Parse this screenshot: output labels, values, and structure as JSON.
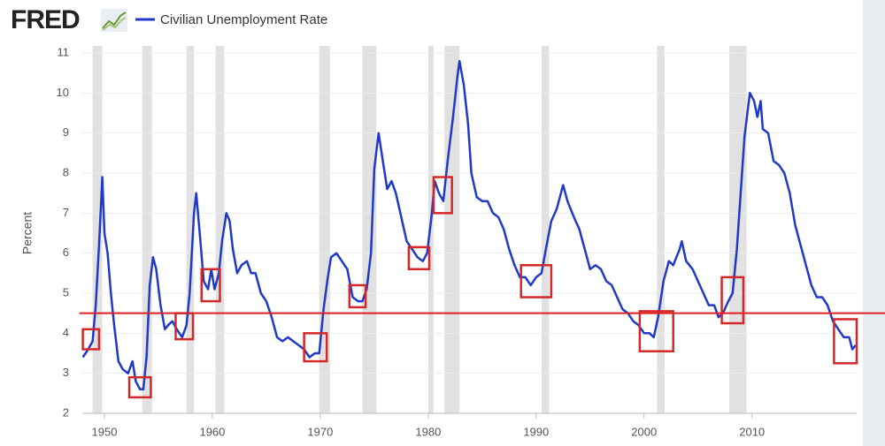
{
  "logo": "FRED",
  "chart_data": {
    "type": "line",
    "ylabel": "Percent",
    "grid": true,
    "xlim": [
      1948,
      2019.7
    ],
    "xticks": [
      1950,
      1960,
      1970,
      1980,
      1990,
      2000,
      2010
    ],
    "ylim": [
      2,
      11
    ],
    "yticks": [
      2,
      3,
      4,
      5,
      6,
      7,
      8,
      9,
      10,
      11
    ],
    "series": [
      {
        "name": "Civilian Unemployment Rate",
        "color": "#1f39c9",
        "x": [
          1948.0,
          1948.5,
          1948.9,
          1949.2,
          1949.5,
          1949.8,
          1950.0,
          1950.3,
          1950.6,
          1950.9,
          1951.3,
          1951.7,
          1952.2,
          1952.6,
          1952.9,
          1953.3,
          1953.6,
          1953.9,
          1954.2,
          1954.5,
          1954.8,
          1955.2,
          1955.6,
          1955.9,
          1956.3,
          1956.7,
          1957.2,
          1957.6,
          1957.9,
          1958.3,
          1958.5,
          1958.8,
          1959.2,
          1959.6,
          1959.9,
          1960.2,
          1960.6,
          1960.9,
          1961.3,
          1961.6,
          1961.9,
          1962.3,
          1962.7,
          1963.2,
          1963.6,
          1964.0,
          1964.5,
          1965.0,
          1965.5,
          1966.0,
          1966.5,
          1967.0,
          1967.5,
          1968.0,
          1968.5,
          1969.0,
          1969.5,
          1969.9,
          1970.3,
          1970.7,
          1971.0,
          1971.5,
          1972.0,
          1972.5,
          1973.0,
          1973.5,
          1973.9,
          1974.3,
          1974.7,
          1975.0,
          1975.4,
          1975.8,
          1976.2,
          1976.6,
          1977.0,
          1977.5,
          1978.0,
          1978.5,
          1979.0,
          1979.5,
          1979.9,
          1980.3,
          1980.6,
          1981.0,
          1981.4,
          1981.8,
          1982.3,
          1982.7,
          1982.9,
          1983.3,
          1983.7,
          1984.0,
          1984.5,
          1985.0,
          1985.5,
          1986.0,
          1986.5,
          1987.0,
          1987.5,
          1988.0,
          1988.5,
          1989.0,
          1989.5,
          1990.0,
          1990.5,
          1990.9,
          1991.4,
          1991.9,
          1992.5,
          1992.9,
          1993.5,
          1994.0,
          1994.5,
          1995.0,
          1995.5,
          1996.0,
          1996.5,
          1997.0,
          1997.5,
          1998.0,
          1998.5,
          1999.0,
          1999.5,
          2000.0,
          2000.5,
          2000.9,
          2001.3,
          2001.8,
          2002.3,
          2002.7,
          2003.3,
          2003.5,
          2003.9,
          2004.5,
          2005.0,
          2005.5,
          2006.0,
          2006.5,
          2006.9,
          2007.3,
          2007.8,
          2008.2,
          2008.6,
          2008.9,
          2009.3,
          2009.8,
          2010.2,
          2010.5,
          2010.8,
          2011.0,
          2011.5,
          2012.0,
          2012.5,
          2013.0,
          2013.5,
          2014.0,
          2014.5,
          2015.0,
          2015.5,
          2016.0,
          2016.5,
          2017.0,
          2017.5,
          2018.0,
          2018.5,
          2019.0,
          2019.3,
          2019.6
        ],
        "values": [
          3.4,
          3.6,
          3.8,
          4.7,
          6.2,
          7.9,
          6.5,
          6.0,
          5.0,
          4.2,
          3.3,
          3.1,
          3.0,
          3.3,
          2.8,
          2.6,
          2.6,
          3.4,
          5.2,
          5.9,
          5.6,
          4.7,
          4.1,
          4.2,
          4.3,
          4.1,
          3.9,
          4.2,
          5.0,
          7.0,
          7.5,
          6.6,
          5.3,
          5.1,
          5.6,
          5.1,
          5.5,
          6.3,
          7.0,
          6.8,
          6.1,
          5.5,
          5.7,
          5.8,
          5.5,
          5.5,
          5.0,
          4.8,
          4.4,
          3.9,
          3.8,
          3.9,
          3.8,
          3.7,
          3.6,
          3.4,
          3.5,
          3.5,
          4.6,
          5.4,
          5.9,
          6.0,
          5.8,
          5.6,
          4.9,
          4.8,
          4.8,
          5.1,
          6.0,
          8.1,
          9.0,
          8.3,
          7.6,
          7.8,
          7.5,
          6.9,
          6.3,
          6.1,
          5.9,
          5.8,
          6.0,
          6.9,
          7.8,
          7.5,
          7.3,
          8.3,
          9.4,
          10.4,
          10.8,
          10.2,
          9.2,
          8.0,
          7.4,
          7.3,
          7.3,
          7.0,
          6.9,
          6.6,
          6.1,
          5.7,
          5.4,
          5.4,
          5.2,
          5.4,
          5.5,
          6.1,
          6.8,
          7.1,
          7.7,
          7.3,
          6.9,
          6.6,
          6.1,
          5.6,
          5.7,
          5.6,
          5.3,
          5.2,
          4.9,
          4.6,
          4.5,
          4.3,
          4.2,
          4.0,
          4.0,
          3.9,
          4.4,
          5.3,
          5.8,
          5.7,
          6.1,
          6.3,
          5.8,
          5.6,
          5.3,
          5.0,
          4.7,
          4.7,
          4.4,
          4.5,
          4.8,
          5.0,
          6.1,
          7.3,
          8.9,
          10.0,
          9.8,
          9.4,
          9.8,
          9.1,
          9.0,
          8.3,
          8.2,
          8.0,
          7.5,
          6.7,
          6.2,
          5.7,
          5.2,
          4.9,
          4.9,
          4.7,
          4.3,
          4.1,
          3.9,
          3.9,
          3.6,
          3.7
        ]
      }
    ],
    "recessions": [
      [
        1948.9,
        1949.8
      ],
      [
        1953.5,
        1954.4
      ],
      [
        1957.6,
        1958.3
      ],
      [
        1960.3,
        1961.1
      ],
      [
        1969.9,
        1970.9
      ],
      [
        1973.9,
        1975.2
      ],
      [
        1980.0,
        1980.5
      ],
      [
        1981.5,
        1982.9
      ],
      [
        1990.5,
        1991.2
      ],
      [
        2001.2,
        2001.9
      ],
      [
        2007.9,
        2009.5
      ]
    ],
    "recession_color": "#e1e1e1",
    "reference_line": {
      "value": 4.5,
      "color": "#e02020"
    },
    "highlight_color": "#d62728",
    "highlight_boxes": [
      {
        "x": [
          1948.0,
          1949.5
        ],
        "y": [
          3.6,
          4.1
        ]
      },
      {
        "x": [
          1952.3,
          1954.3
        ],
        "y": [
          2.4,
          2.9
        ]
      },
      {
        "x": [
          1956.6,
          1958.2
        ],
        "y": [
          3.85,
          4.5
        ]
      },
      {
        "x": [
          1959.0,
          1960.7
        ],
        "y": [
          4.8,
          5.6
        ]
      },
      {
        "x": [
          1968.5,
          1970.6
        ],
        "y": [
          3.3,
          4.0
        ]
      },
      {
        "x": [
          1972.7,
          1974.2
        ],
        "y": [
          4.65,
          5.2
        ]
      },
      {
        "x": [
          1978.2,
          1980.1
        ],
        "y": [
          5.6,
          6.15
        ]
      },
      {
        "x": [
          1980.5,
          1982.2
        ],
        "y": [
          7.0,
          7.9
        ]
      },
      {
        "x": [
          1988.6,
          1991.4
        ],
        "y": [
          4.9,
          5.7
        ]
      },
      {
        "x": [
          1999.6,
          2002.7
        ],
        "y": [
          3.55,
          4.55
        ]
      },
      {
        "x": [
          2007.2,
          2009.2
        ],
        "y": [
          4.25,
          5.4
        ]
      },
      {
        "x": [
          2017.6,
          2019.7
        ],
        "y": [
          3.25,
          4.35
        ]
      }
    ]
  }
}
